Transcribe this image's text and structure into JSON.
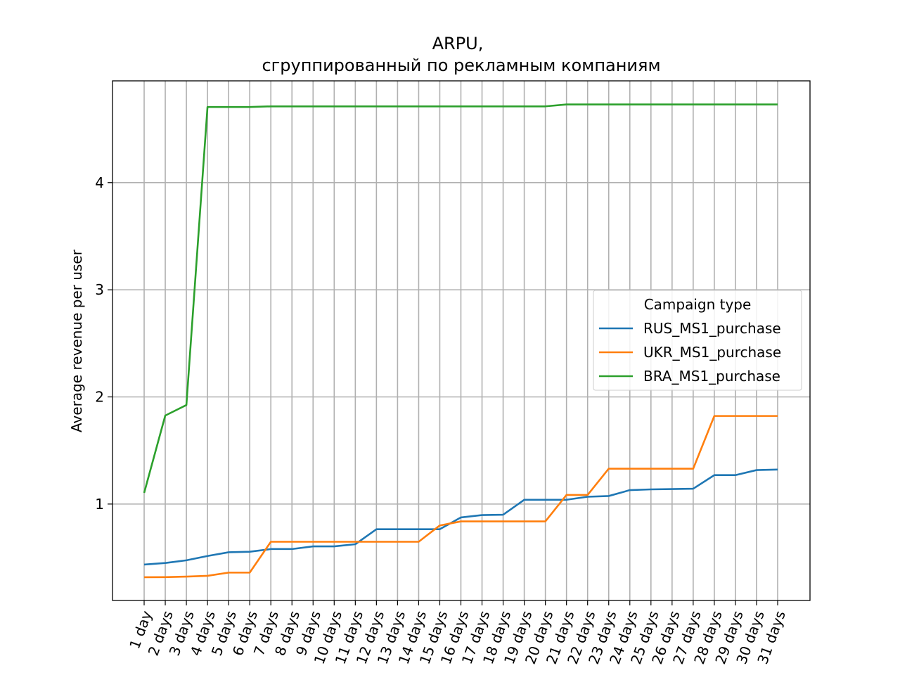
{
  "chart_data": {
    "type": "line",
    "title": [
      "ARPU,",
      "сгруппированный по рекламным компаниям"
    ],
    "xlabel": "",
    "ylabel": "Average revenue per user",
    "ylim": [
      0.1,
      4.95
    ],
    "yticks": [
      1,
      2,
      3,
      4
    ],
    "grid": true,
    "categories": [
      "1 day",
      "2 days",
      "3 days",
      "4 days",
      "5 days",
      "6 days",
      "7 days",
      "8 days",
      "9 days",
      "10 days",
      "11 days",
      "12 days",
      "13 days",
      "14 days",
      "15 days",
      "16 days",
      "17 days",
      "18 days",
      "19 days",
      "20 days",
      "21 days",
      "22 days",
      "23 days",
      "24 days",
      "25 days",
      "26 days",
      "27 days",
      "28 days",
      "29 days",
      "30 days",
      "31 days"
    ],
    "legend": {
      "title": "Campaign type",
      "position": "center-right"
    },
    "series": [
      {
        "name": "RUS_MS1_purchase",
        "color": "#1f77b4",
        "values": [
          0.435,
          0.45,
          0.475,
          0.515,
          0.55,
          0.555,
          0.58,
          0.58,
          0.605,
          0.605,
          0.625,
          0.765,
          0.765,
          0.765,
          0.765,
          0.875,
          0.897,
          0.9,
          1.04,
          1.04,
          1.04,
          1.068,
          1.075,
          1.13,
          1.137,
          1.14,
          1.143,
          1.27,
          1.27,
          1.317,
          1.322
        ]
      },
      {
        "name": "UKR_MS1_purchase",
        "color": "#ff7f0e",
        "values": [
          0.317,
          0.318,
          0.323,
          0.33,
          0.36,
          0.36,
          0.648,
          0.648,
          0.648,
          0.648,
          0.648,
          0.648,
          0.648,
          0.648,
          0.8,
          0.838,
          0.838,
          0.838,
          0.838,
          0.838,
          1.085,
          1.085,
          1.33,
          1.33,
          1.33,
          1.33,
          1.33,
          1.822,
          1.822,
          1.822,
          1.822
        ]
      },
      {
        "name": "BRA_MS1_purchase",
        "color": "#2ca02c",
        "values": [
          1.104,
          1.826,
          1.924,
          4.706,
          4.706,
          4.706,
          4.712,
          4.712,
          4.712,
          4.712,
          4.712,
          4.712,
          4.712,
          4.712,
          4.712,
          4.712,
          4.712,
          4.712,
          4.712,
          4.712,
          4.73,
          4.73,
          4.73,
          4.73,
          4.73,
          4.73,
          4.73,
          4.73,
          4.73,
          4.73,
          4.73
        ]
      }
    ]
  }
}
